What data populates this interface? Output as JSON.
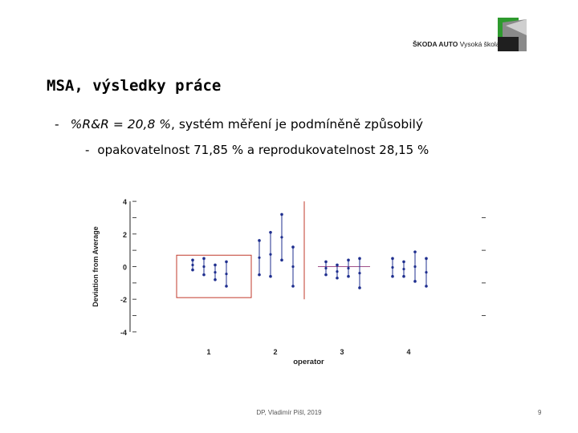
{
  "header": {
    "logo_bold": "ŠKODA AUTO",
    "logo_rest": "Vysoká škola"
  },
  "slide": {
    "title": "MSA, výsledky práce",
    "bullet1_dash": "-",
    "bullet1_em": "%R&R = 20,8 %",
    "bullet1_rest": ", systém měření je podmíněně způsobilý",
    "bullet2_dash": "-",
    "bullet2_text": "opakovatelnost 71,85 % a reprodukovatelnost 28,15 %"
  },
  "chart_data": {
    "type": "scatter",
    "xlabel": "operator",
    "ylabel": "Deviation from Average",
    "categories": [
      "1",
      "2",
      "3",
      "4"
    ],
    "y_ticks": [
      "4",
      "2",
      "0",
      "-2",
      "-4"
    ],
    "ylim": [
      -4.3,
      4.3
    ],
    "series": [
      {
        "values": [
          [
            -0.2,
            0.4
          ],
          [
            -0.5,
            0.5
          ],
          [
            -0.8,
            0.1
          ],
          [
            -1.2,
            0.3
          ]
        ]
      },
      {
        "values": [
          [
            -0.5,
            1.6
          ],
          [
            -0.6,
            2.1
          ],
          [
            0.4,
            3.2
          ],
          [
            -1.2,
            1.2
          ]
        ]
      },
      {
        "values": [
          [
            -0.5,
            0.3
          ],
          [
            -0.7,
            0.1
          ],
          [
            -0.6,
            0.4
          ],
          [
            -1.3,
            0.5
          ]
        ]
      },
      {
        "values": [
          [
            -0.6,
            0.5
          ],
          [
            -0.6,
            0.3
          ],
          [
            -0.9,
            0.9
          ],
          [
            -1.2,
            0.5
          ]
        ]
      }
    ],
    "colors": {
      "points": "#1f2f8f",
      "boxes": "#c0392b",
      "axis": "#222222",
      "ticks": "#444444"
    }
  },
  "footer": {
    "center": "DP, Vladimír Pišl, 2019",
    "page": "9"
  }
}
